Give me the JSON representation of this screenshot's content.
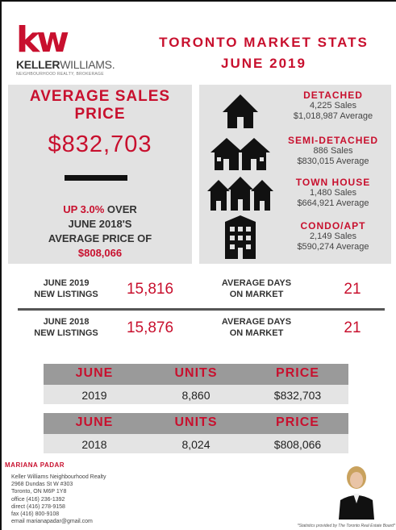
{
  "brand": {
    "logo_mark": "kw",
    "logo_name_bold": "KELLER",
    "logo_name_rest": "WILLIAMS.",
    "logo_sub": "NEIGHBOURHOOD REALTY, BROKERAGE"
  },
  "header": {
    "title_line1": "TORONTO MARKET STATS",
    "title_line2": "JUNE 2019"
  },
  "average": {
    "title_line1": "AVERAGE SALES",
    "title_line2": "PRICE",
    "price": "$832,703",
    "change_prefix": "UP 3.0%",
    "change_line1_rest": " OVER",
    "change_line2": "JUNE 2018'S",
    "change_line3": "AVERAGE PRICE OF",
    "previous_price": "$808,066"
  },
  "types": [
    {
      "name": "DETACHED",
      "sales": "4,225 Sales",
      "average": "$1,018,987 Average",
      "icon": "house-icon"
    },
    {
      "name": "SEMI-DETACHED",
      "sales": "886 Sales",
      "average": "$830,015 Average",
      "icon": "semi-detached-icon"
    },
    {
      "name": "TOWN HOUSE",
      "sales": "1,480 Sales",
      "average": "$664,921 Average",
      "icon": "townhouse-icon"
    },
    {
      "name": "CONDO/APT",
      "sales": "2,149 Sales",
      "average": "$590,274 Average",
      "icon": "condo-icon"
    }
  ],
  "listings": [
    {
      "label_line1": "JUNE 2019",
      "label_line2": "NEW LISTINGS",
      "value": "15,816",
      "days_line1": "AVERAGE DAYS",
      "days_line2": "ON MARKET",
      "days": "21"
    },
    {
      "label_line1": "JUNE 2018",
      "label_line2": "NEW LISTINGS",
      "value": "15,876",
      "days_line1": "AVERAGE DAYS",
      "days_line2": "ON MARKET",
      "days": "21"
    }
  ],
  "summary": {
    "headers": [
      "JUNE",
      "UNITS",
      "PRICE"
    ],
    "rows": [
      [
        "2019",
        "8,860",
        "$832,703"
      ],
      [
        "2018",
        "8,024",
        "$808,066"
      ]
    ]
  },
  "agent": {
    "name": "MARIANA PADAR",
    "lines": [
      "Keller Williams Neighbourhood Realty",
      "2968 Dundas St W #303",
      "Toronto, ON  M6P 1Y8",
      "office (416) 236-1392",
      "direct (416) 278-9158",
      "fax (416) 800-9108",
      "email marianapadar@gmail.com"
    ]
  },
  "disclaimer": "*Statistics provided by The Toronto Real Estate Board*",
  "colors": {
    "accent": "#c8102e",
    "panel": "#e2e2e2",
    "header_band": "#9a9a9a"
  }
}
